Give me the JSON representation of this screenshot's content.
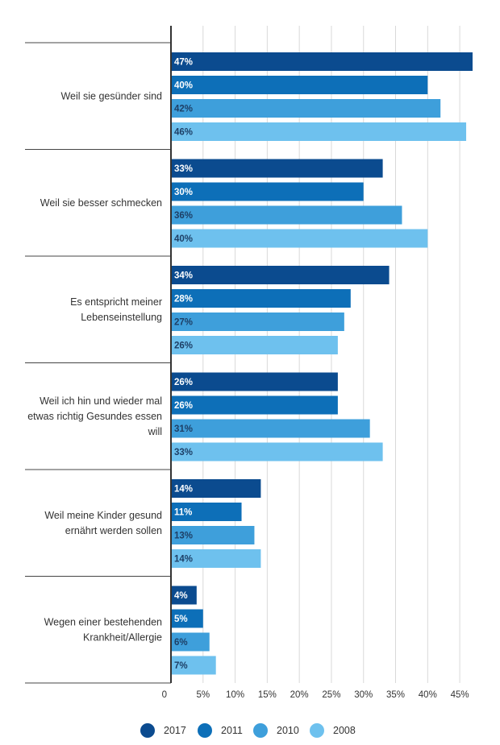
{
  "chart_data": {
    "type": "bar",
    "orientation": "horizontal",
    "categories": [
      [
        "Weil sie gesünder sind"
      ],
      [
        "Weil sie besser schmecken"
      ],
      [
        "Es entspricht meiner",
        "Lebenseinstellung"
      ],
      [
        "Weil ich hin und wieder mal",
        "etwas richtig Gesundes essen",
        "will"
      ],
      [
        "Weil meine Kinder gesund",
        "ernährt werden sollen"
      ],
      [
        "Wegen einer bestehenden",
        "Krankheit/Allergie"
      ]
    ],
    "series": [
      {
        "name": "2017",
        "color": "#0B4B8F",
        "label_color": "#ffffff",
        "values": [
          47,
          33,
          34,
          26,
          14,
          4
        ]
      },
      {
        "name": "2011",
        "color": "#0D6FB8",
        "label_color": "#ffffff",
        "values": [
          40,
          30,
          28,
          26,
          11,
          5
        ]
      },
      {
        "name": "2010",
        "color": "#3E9FDB",
        "label_color": "#1d3f66",
        "values": [
          42,
          36,
          27,
          31,
          13,
          6
        ]
      },
      {
        "name": "2008",
        "color": "#6EC1EE",
        "label_color": "#1d3f66",
        "values": [
          46,
          40,
          26,
          33,
          14,
          7
        ]
      }
    ],
    "xlim": [
      0,
      47
    ],
    "xticks": [
      0,
      5,
      10,
      15,
      20,
      25,
      30,
      35,
      40,
      45
    ],
    "xtick_labels": [
      "0",
      "5%",
      "10%",
      "15%",
      "20%",
      "25%",
      "30%",
      "35%",
      "40%",
      "45%"
    ],
    "value_suffix": "%",
    "legend_position": "bottom-center",
    "grid": true
  }
}
